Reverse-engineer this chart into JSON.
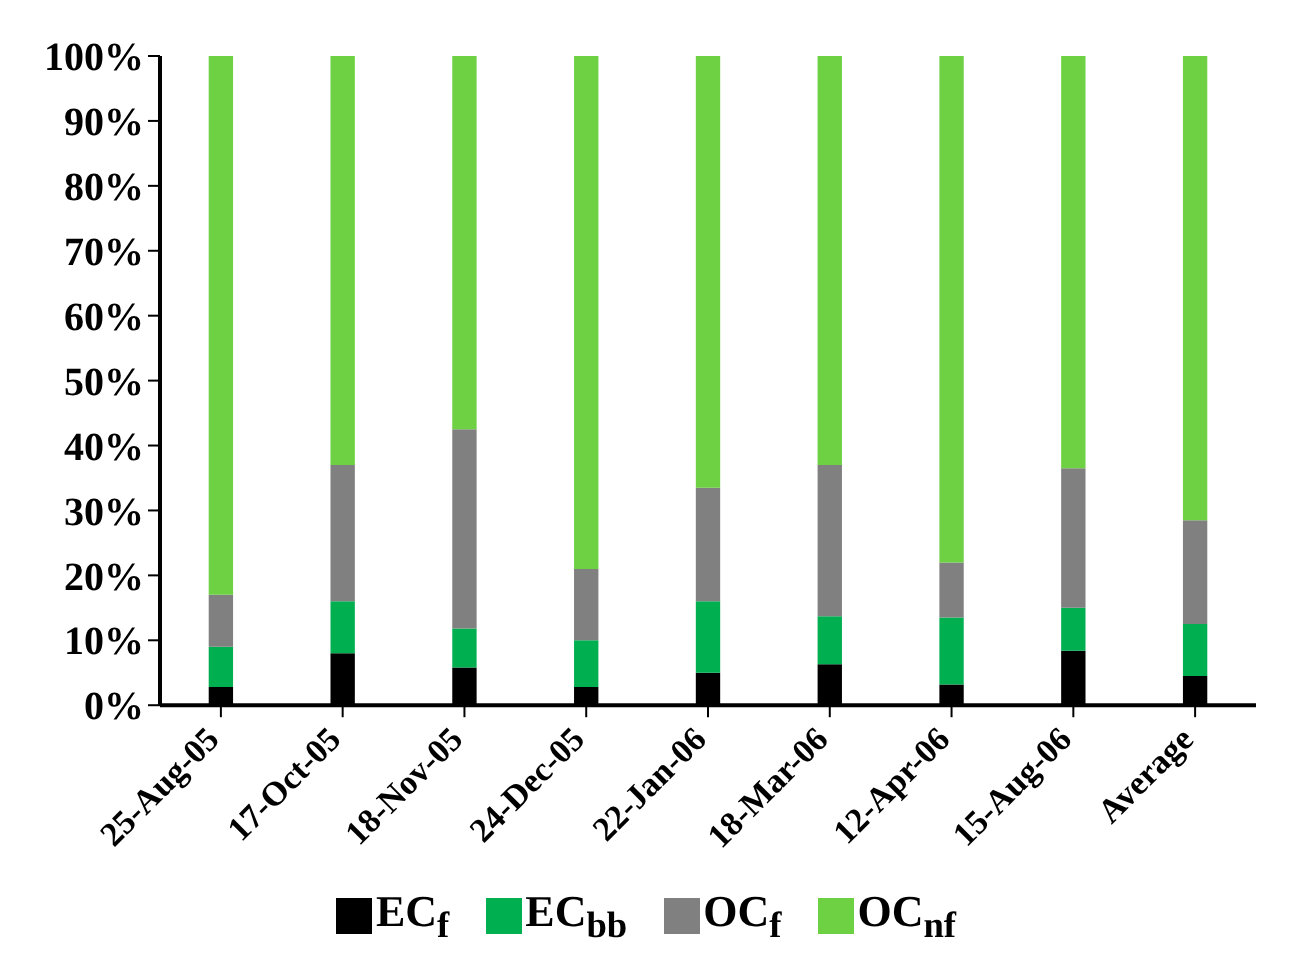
{
  "chart_data": {
    "type": "bar",
    "stacked": true,
    "categories": [
      "25-Aug-05",
      "17-Oct-05",
      "18-Nov-05",
      "24-Dec-05",
      "22-Jan-06",
      "18-Mar-06",
      "12-Apr-06",
      "15-Aug-06",
      "Average"
    ],
    "series": [
      {
        "name": "EC$_{f}$",
        "color": "#000000",
        "values": [
          2.8,
          8,
          5.8,
          2.8,
          5,
          6.3,
          3.2,
          8.4,
          4.5
        ]
      },
      {
        "name": "EC$_{bb}$",
        "color": "#00b050",
        "values": [
          6.2,
          8,
          6,
          7.2,
          11,
          7.4,
          10.3,
          6.6,
          8
        ]
      },
      {
        "name": "OC$_{f}$",
        "color": "#808080",
        "values": [
          8,
          21,
          30.7,
          11,
          17.5,
          23.3,
          8.5,
          21.5,
          16
        ]
      },
      {
        "name": "OC$_{nf}$",
        "color": "#6dd143",
        "values": [
          83,
          63,
          57.5,
          79,
          66.5,
          63,
          78,
          63.5,
          71.5
        ]
      }
    ],
    "ylim": [
      0,
      100
    ],
    "yticks": [
      {
        "value": 0,
        "label": "0%"
      },
      {
        "value": 10,
        "label": "10%"
      },
      {
        "value": 20,
        "label": "20%"
      },
      {
        "value": 30,
        "label": "30%"
      },
      {
        "value": 40,
        "label": "40%"
      },
      {
        "value": 50,
        "label": "50%"
      },
      {
        "value": 60,
        "label": "60%"
      },
      {
        "value": 70,
        "label": "70%"
      },
      {
        "value": 80,
        "label": "80%"
      },
      {
        "value": 90,
        "label": "90%"
      },
      {
        "value": 100,
        "label": "100%"
      }
    ],
    "grid": false,
    "legend": "bottom"
  }
}
